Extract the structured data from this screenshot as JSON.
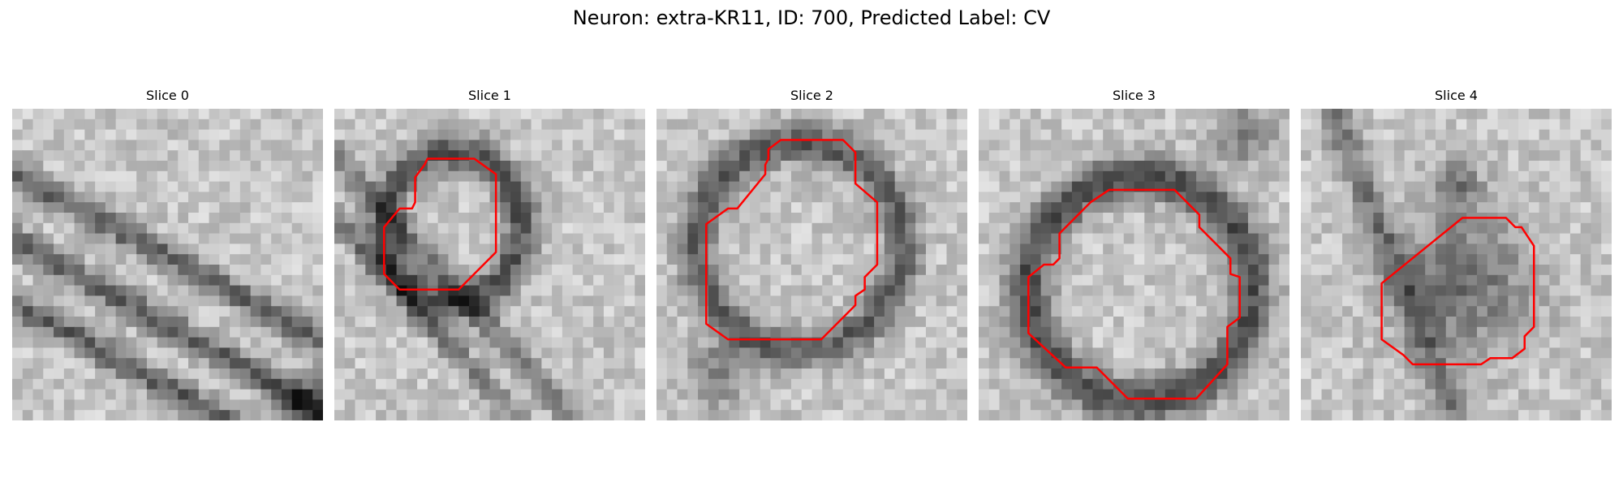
{
  "figure": {
    "title": "Neuron: extra-KR11, ID: 700, Predicted Label: CV",
    "contour_color": "#ff0000",
    "panels": [
      {
        "title": "Slice 0",
        "contour": []
      },
      {
        "title": "Slice 1",
        "contour": [
          [
            0.3,
            0.16
          ],
          [
            0.45,
            0.16
          ],
          [
            0.52,
            0.21
          ],
          [
            0.52,
            0.46
          ],
          [
            0.4,
            0.58
          ],
          [
            0.21,
            0.58
          ],
          [
            0.16,
            0.53
          ],
          [
            0.16,
            0.38
          ],
          [
            0.21,
            0.32
          ],
          [
            0.25,
            0.32
          ],
          [
            0.26,
            0.3
          ],
          [
            0.26,
            0.22
          ],
          [
            0.29,
            0.18
          ]
        ]
      },
      {
        "title": "Slice 2",
        "contour": [
          [
            0.4,
            0.1
          ],
          [
            0.6,
            0.1
          ],
          [
            0.64,
            0.14
          ],
          [
            0.64,
            0.24
          ],
          [
            0.71,
            0.3
          ],
          [
            0.71,
            0.5
          ],
          [
            0.67,
            0.54
          ],
          [
            0.67,
            0.58
          ],
          [
            0.64,
            0.6
          ],
          [
            0.64,
            0.63
          ],
          [
            0.53,
            0.74
          ],
          [
            0.23,
            0.74
          ],
          [
            0.16,
            0.69
          ],
          [
            0.16,
            0.37
          ],
          [
            0.23,
            0.32
          ],
          [
            0.26,
            0.32
          ],
          [
            0.35,
            0.21
          ],
          [
            0.35,
            0.18
          ],
          [
            0.36,
            0.16
          ],
          [
            0.36,
            0.13
          ]
        ]
      },
      {
        "title": "Slice 3",
        "contour": [
          [
            0.42,
            0.26
          ],
          [
            0.63,
            0.26
          ],
          [
            0.71,
            0.34
          ],
          [
            0.71,
            0.38
          ],
          [
            0.81,
            0.48
          ],
          [
            0.81,
            0.53
          ],
          [
            0.84,
            0.54
          ],
          [
            0.84,
            0.67
          ],
          [
            0.8,
            0.7
          ],
          [
            0.8,
            0.82
          ],
          [
            0.7,
            0.93
          ],
          [
            0.48,
            0.93
          ],
          [
            0.38,
            0.83
          ],
          [
            0.28,
            0.83
          ],
          [
            0.16,
            0.72
          ],
          [
            0.16,
            0.54
          ],
          [
            0.21,
            0.5
          ],
          [
            0.24,
            0.5
          ],
          [
            0.26,
            0.48
          ],
          [
            0.26,
            0.4
          ],
          [
            0.32,
            0.34
          ],
          [
            0.36,
            0.3
          ]
        ]
      },
      {
        "title": "Slice 4",
        "contour": [
          [
            0.52,
            0.35
          ],
          [
            0.66,
            0.35
          ],
          [
            0.69,
            0.38
          ],
          [
            0.71,
            0.38
          ],
          [
            0.75,
            0.44
          ],
          [
            0.75,
            0.7
          ],
          [
            0.72,
            0.73
          ],
          [
            0.72,
            0.77
          ],
          [
            0.68,
            0.8
          ],
          [
            0.61,
            0.8
          ],
          [
            0.58,
            0.82
          ],
          [
            0.36,
            0.82
          ],
          [
            0.33,
            0.79
          ],
          [
            0.26,
            0.74
          ],
          [
            0.26,
            0.56
          ]
        ]
      }
    ]
  }
}
